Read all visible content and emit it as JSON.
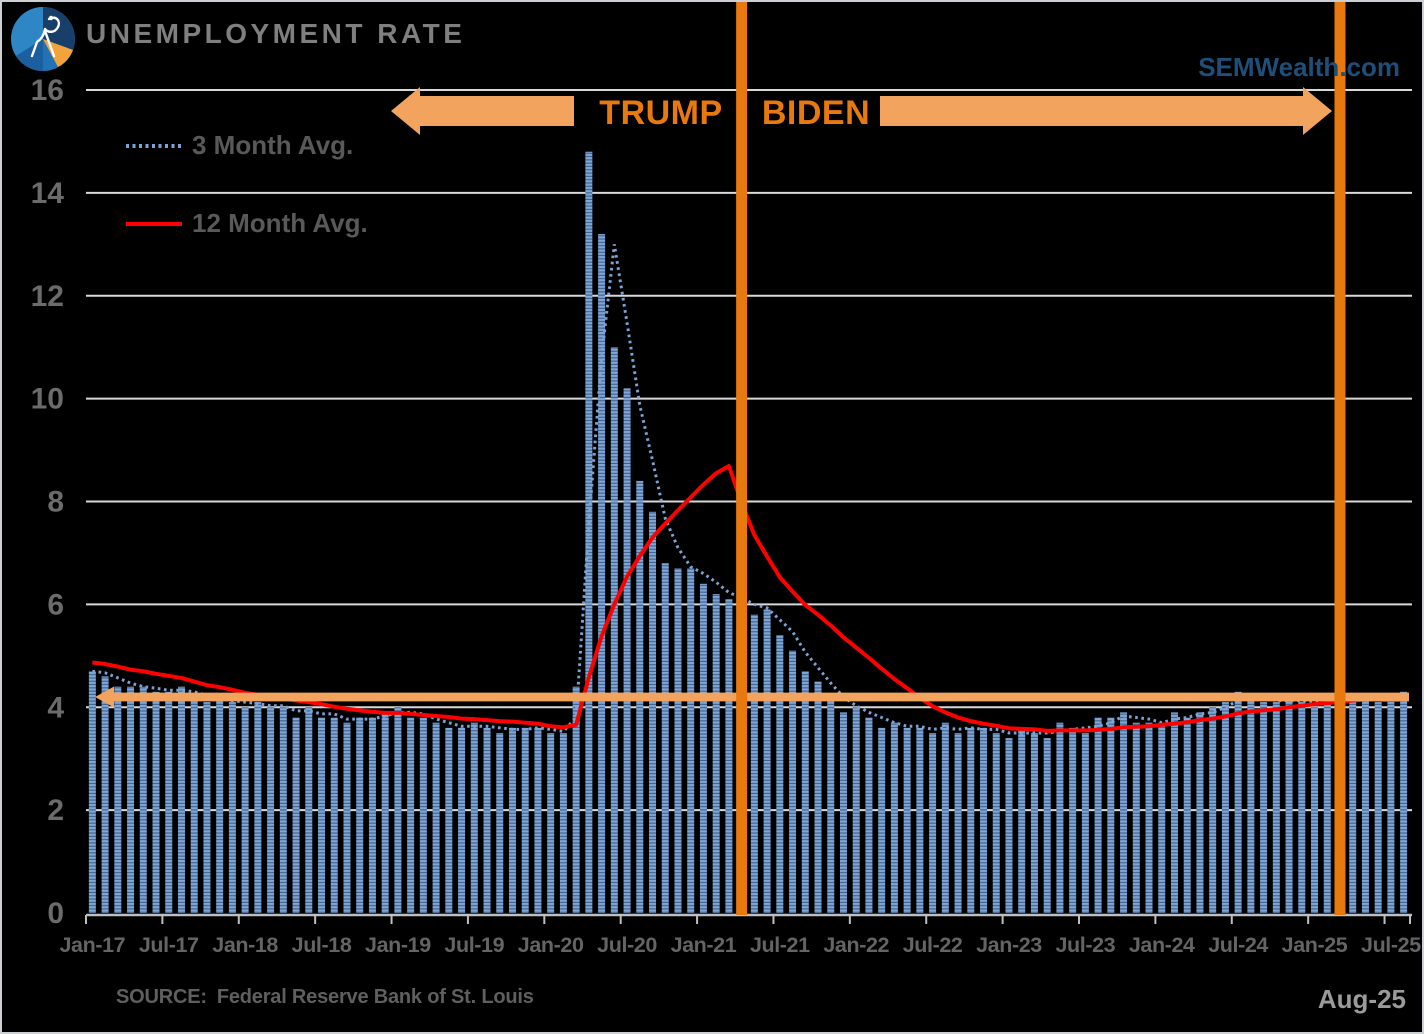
{
  "header": {
    "title": "UNEMPLOYMENT RATE",
    "brand": "SEMWealth.com",
    "logo": "sem-wealth-pie-logo"
  },
  "legend": {
    "items": [
      {
        "label": "3 Month Avg.",
        "color": "#7BA3D4",
        "style": "dotted"
      },
      {
        "label": "12 Month Avg.",
        "color": "#FF0000",
        "style": "solid"
      }
    ]
  },
  "annotations": {
    "trump_label": "TRUMP",
    "biden_label": "BIDEN",
    "arrow_color": "#F2A45F",
    "line_color": "#E8790E",
    "vlines": [
      {
        "month_index": 51
      },
      {
        "month_index": 98
      }
    ],
    "reference_line": {
      "value": 4.2,
      "color": "#F2A45F"
    }
  },
  "footer": {
    "source_label": "SOURCE:",
    "source_text": "Federal Reserve Bank of St. Louis",
    "as_of": "Aug-25"
  },
  "chart_data": {
    "type": "bar",
    "title": "UNEMPLOYMENT RATE",
    "x_start": "Jan-17",
    "x_end": "Aug-25",
    "x_tick_labels": [
      "Jan-17",
      "Jul-17",
      "Jan-18",
      "Jul-18",
      "Jan-19",
      "Jul-19",
      "Jan-20",
      "Jul-20",
      "Jan-21",
      "Jul-21",
      "Jan-22",
      "Jul-22",
      "Jan-23",
      "Jul-23",
      "Jan-24",
      "Jul-24",
      "Jan-25",
      "Jul-25"
    ],
    "xlabel": "",
    "ylabel": "",
    "ylim": [
      0,
      16
    ],
    "yticks": [
      0,
      2,
      4,
      6,
      8,
      10,
      12,
      14,
      16
    ],
    "grid": "horizontal",
    "legend_position": "top-left",
    "bar_color": "#6F95C6",
    "bar_stripe_light": "#7FA6D6",
    "bar_stripe_dark": "#3F608C",
    "series": [
      {
        "name": "Unemployment Rate",
        "type": "bar",
        "values": [
          4.7,
          4.6,
          4.4,
          4.4,
          4.4,
          4.3,
          4.3,
          4.4,
          4.2,
          4.1,
          4.2,
          4.1,
          4.0,
          4.1,
          4.0,
          4.0,
          3.8,
          4.0,
          3.8,
          3.8,
          3.7,
          3.8,
          3.8,
          3.9,
          4.0,
          3.8,
          3.8,
          3.7,
          3.6,
          3.6,
          3.7,
          3.6,
          3.5,
          3.6,
          3.6,
          3.6,
          3.5,
          3.5,
          4.4,
          14.8,
          13.2,
          11.0,
          10.2,
          8.4,
          7.8,
          6.8,
          6.7,
          6.7,
          6.4,
          6.2,
          6.1,
          6.1,
          5.8,
          5.9,
          5.4,
          5.1,
          4.7,
          4.5,
          4.2,
          3.9,
          4.0,
          3.8,
          3.6,
          3.7,
          3.6,
          3.6,
          3.5,
          3.7,
          3.5,
          3.6,
          3.6,
          3.5,
          3.4,
          3.6,
          3.5,
          3.4,
          3.7,
          3.6,
          3.5,
          3.8,
          3.8,
          3.9,
          3.7,
          3.7,
          3.7,
          3.9,
          3.8,
          3.9,
          4.0,
          4.1,
          4.3,
          4.2,
          4.1,
          4.1,
          4.2,
          4.1,
          4.0,
          4.1,
          4.2,
          4.2,
          4.2,
          4.1,
          4.2,
          4.3
        ]
      },
      {
        "name": "3 Month Avg.",
        "type": "line-dotted",
        "values": [
          4.7,
          4.67,
          4.57,
          4.47,
          4.4,
          4.37,
          4.33,
          4.33,
          4.3,
          4.23,
          4.17,
          4.13,
          4.1,
          4.07,
          4.03,
          4.03,
          3.93,
          3.93,
          3.87,
          3.87,
          3.77,
          3.77,
          3.77,
          3.83,
          3.9,
          3.9,
          3.87,
          3.77,
          3.7,
          3.63,
          3.63,
          3.63,
          3.6,
          3.57,
          3.57,
          3.6,
          3.57,
          3.53,
          3.8,
          7.57,
          10.8,
          13.0,
          11.47,
          9.87,
          8.8,
          7.67,
          7.1,
          6.73,
          6.6,
          6.43,
          6.23,
          6.13,
          6.0,
          5.93,
          5.7,
          5.47,
          5.07,
          4.77,
          4.47,
          4.2,
          4.03,
          3.9,
          3.8,
          3.7,
          3.63,
          3.63,
          3.57,
          3.6,
          3.57,
          3.6,
          3.57,
          3.57,
          3.5,
          3.5,
          3.5,
          3.5,
          3.53,
          3.57,
          3.6,
          3.63,
          3.7,
          3.83,
          3.8,
          3.77,
          3.7,
          3.77,
          3.8,
          3.87,
          3.9,
          4.0,
          4.13,
          4.2,
          4.2,
          4.13,
          4.13,
          4.13,
          4.1,
          4.07,
          4.1,
          4.17,
          4.2,
          4.17,
          4.17,
          4.2
        ]
      },
      {
        "name": "12 Month Avg.",
        "type": "line",
        "values": [
          4.87,
          4.84,
          4.79,
          4.73,
          4.7,
          4.65,
          4.61,
          4.57,
          4.5,
          4.43,
          4.39,
          4.34,
          4.28,
          4.24,
          4.21,
          4.18,
          4.13,
          4.1,
          4.06,
          4.01,
          3.97,
          3.94,
          3.91,
          3.89,
          3.89,
          3.87,
          3.85,
          3.83,
          3.81,
          3.78,
          3.77,
          3.75,
          3.73,
          3.72,
          3.7,
          3.68,
          3.63,
          3.61,
          3.66,
          4.58,
          5.38,
          6.0,
          6.54,
          6.94,
          7.3,
          7.57,
          7.83,
          8.08,
          8.33,
          8.55,
          8.69,
          7.97,
          7.35,
          6.93,
          6.53,
          6.25,
          5.99,
          5.8,
          5.59,
          5.36,
          5.16,
          4.96,
          4.75,
          4.55,
          4.37,
          4.18,
          4.02,
          3.9,
          3.8,
          3.73,
          3.68,
          3.64,
          3.59,
          3.58,
          3.57,
          3.54,
          3.55,
          3.55,
          3.55,
          3.56,
          3.58,
          3.61,
          3.62,
          3.63,
          3.66,
          3.68,
          3.71,
          3.75,
          3.78,
          3.82,
          3.88,
          3.92,
          3.94,
          3.96,
          4.0,
          4.03,
          4.06,
          4.08,
          4.11,
          4.13,
          4.15,
          4.15,
          4.14,
          4.15
        ]
      }
    ]
  }
}
